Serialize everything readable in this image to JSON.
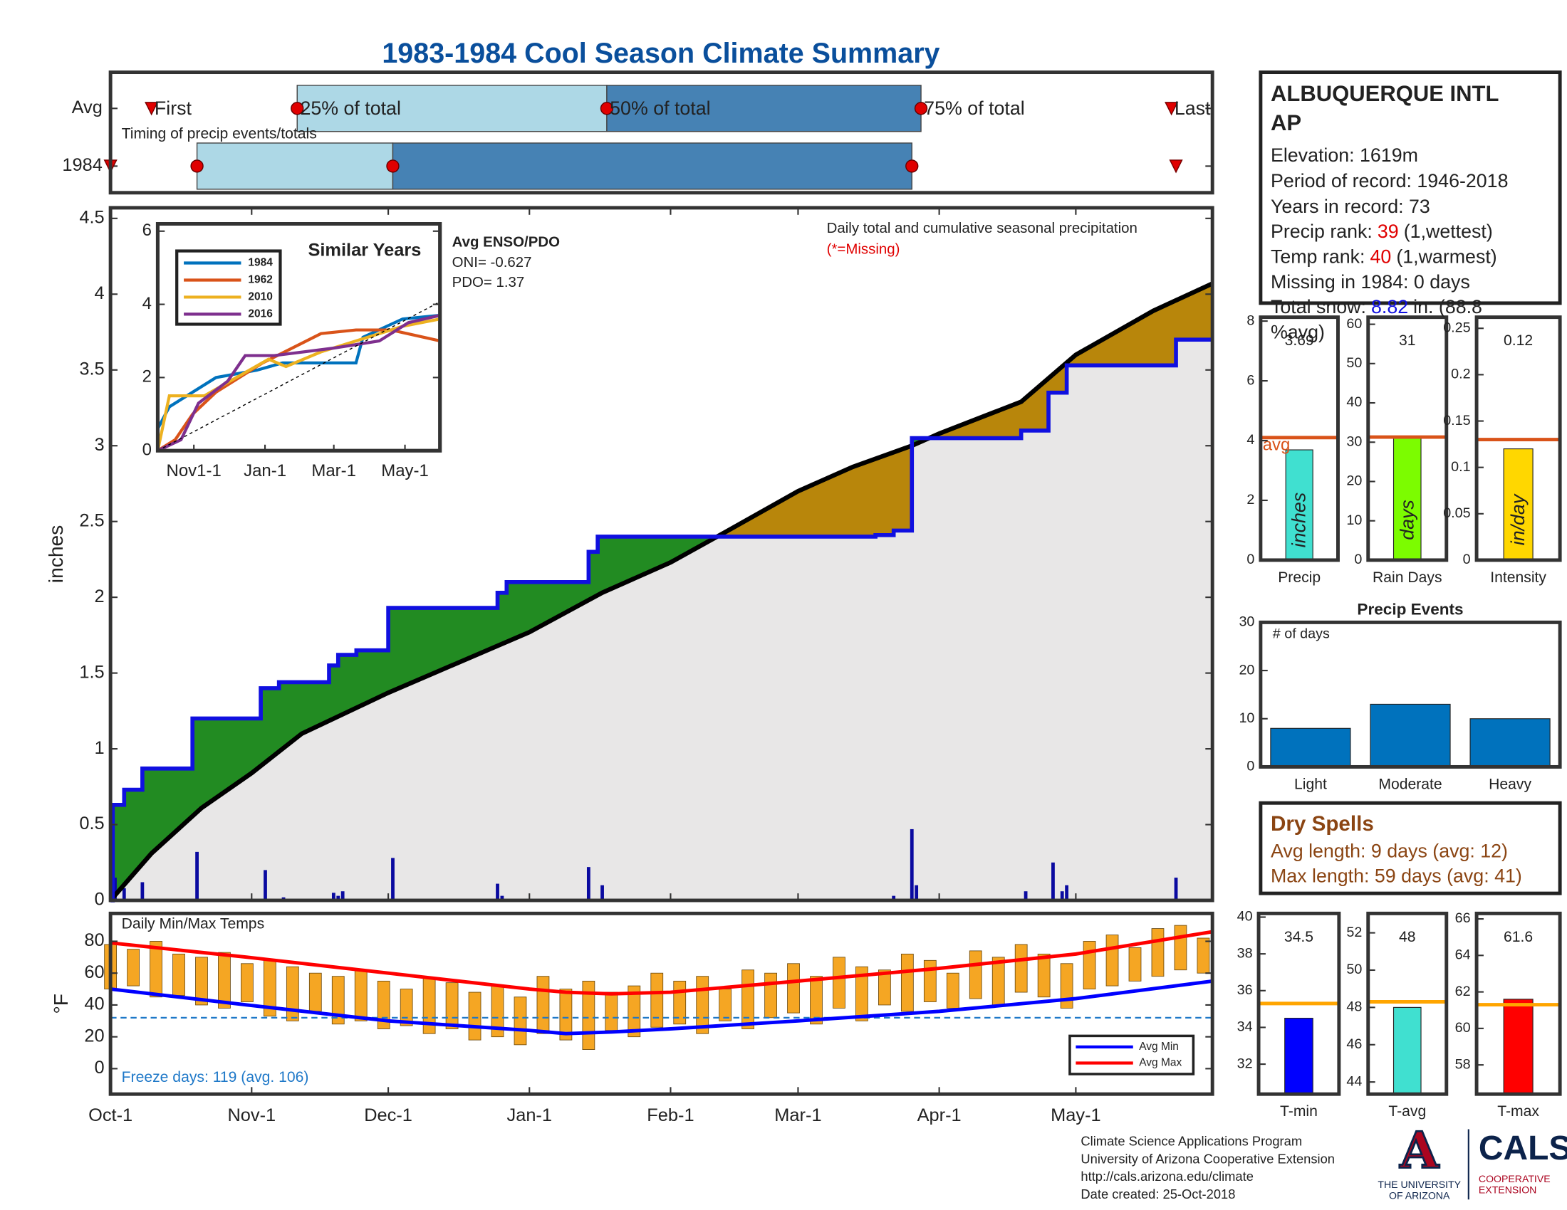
{
  "title": "1983-1984 Cool Season Climate Summary",
  "chart_data": [
    {
      "type": "timeline",
      "annotation": "Timing of precip events/totals",
      "xlim": [
        0,
        242
      ],
      "markers": [
        "First",
        "25% of total",
        "50% of total",
        "75% of total",
        "Last"
      ],
      "rows": [
        {
          "label": "Avg",
          "values": [
            9,
            41,
            109,
            178,
            233
          ]
        },
        {
          "label": "1984",
          "values": [
            0,
            19,
            62,
            176,
            234
          ]
        }
      ],
      "colors": [
        "#add8e6",
        "#4682b4"
      ],
      "marker_color": "#e00000"
    },
    {
      "type": "area",
      "annotation": "Daily total and cumulative seasonal precipitation",
      "note": "(*=Missing)",
      "enso": [
        "Avg ENSO/PDO",
        "ONI= -0.627",
        "PDO= 1.37"
      ],
      "ylabel": "inches",
      "xlim": [
        0,
        242
      ],
      "ylim": [
        0,
        4.57
      ],
      "yticks": [
        0,
        0.5,
        1,
        1.5,
        2,
        2.5,
        3,
        3.5,
        4,
        4.5
      ],
      "average": {
        "x": [
          0,
          9,
          20,
          31,
          42,
          61,
          92,
          108,
          123,
          135,
          151,
          163,
          176,
          182,
          200,
          212,
          229,
          242
        ],
        "values": [
          0,
          0.31,
          0.61,
          0.84,
          1.1,
          1.37,
          1.77,
          2.03,
          2.23,
          2.43,
          2.7,
          2.86,
          3.0,
          3.08,
          3.29,
          3.6,
          3.89,
          4.07
        ],
        "color": "#000000"
      },
      "observed": {
        "x": [
          0,
          0.5,
          3,
          7,
          18,
          33,
          37,
          48,
          50,
          54,
          61,
          85,
          87,
          105,
          107,
          168,
          172,
          176,
          200,
          206,
          210,
          234,
          242
        ],
        "values": [
          0,
          0.63,
          0.73,
          0.87,
          1.2,
          1.4,
          1.44,
          1.55,
          1.62,
          1.65,
          1.93,
          2.03,
          2.1,
          2.3,
          2.4,
          2.41,
          2.44,
          3.05,
          3.1,
          3.35,
          3.53,
          3.7,
          3.7
        ],
        "color": "#1010e0"
      },
      "daily": {
        "x": [
          1,
          3,
          7,
          19,
          34,
          38,
          49,
          50,
          51,
          62,
          85,
          86,
          105,
          108,
          172,
          176,
          177,
          201,
          207,
          209,
          210,
          234
        ],
        "values": [
          0.15,
          0.08,
          0.12,
          0.32,
          0.2,
          0.02,
          0.05,
          0.03,
          0.06,
          0.28,
          0.11,
          0.03,
          0.22,
          0.1,
          0.03,
          0.47,
          0.1,
          0.06,
          0.25,
          0.06,
          0.1,
          0.15
        ],
        "color": "#0a0aa0"
      },
      "above_color": "#228b22",
      "below_color": "#b8860b",
      "base_color": "#e8e7e7"
    },
    {
      "type": "line",
      "title": "Similar Years",
      "xlim": [
        0,
        242
      ],
      "ylim": [
        0,
        6.2
      ],
      "yticks": [
        0,
        2,
        4,
        6
      ],
      "xticks": [
        {
          "value": 31,
          "label": "Nov1-1"
        },
        {
          "value": 92,
          "label": "Jan-1"
        },
        {
          "value": 151,
          "label": "Mar-1"
        },
        {
          "value": 212,
          "label": "May-1"
        }
      ],
      "series": [
        {
          "name": "1984",
          "color": "#0072bd",
          "x": [
            0,
            10,
            30,
            50,
            85,
            107,
            170,
            176,
            210,
            242
          ],
          "values": [
            0.6,
            1.2,
            1.6,
            2.0,
            2.2,
            2.4,
            2.4,
            3.1,
            3.6,
            3.7
          ]
        },
        {
          "name": "1962",
          "color": "#d95319",
          "x": [
            0,
            15,
            30,
            50,
            90,
            140,
            170,
            200,
            242
          ],
          "values": [
            0,
            0.3,
            1.0,
            1.6,
            2.4,
            3.2,
            3.3,
            3.3,
            3.0
          ]
        },
        {
          "name": "2010",
          "color": "#edb120",
          "x": [
            0,
            10,
            40,
            95,
            110,
            140,
            170,
            210,
            242
          ],
          "values": [
            0,
            1.5,
            1.5,
            2.5,
            2.3,
            2.7,
            3.0,
            3.4,
            3.6
          ]
        },
        {
          "name": "2016",
          "color": "#7e2f8e",
          "x": [
            0,
            20,
            35,
            60,
            75,
            100,
            150,
            190,
            215,
            242
          ],
          "values": [
            0,
            0.3,
            1.3,
            1.9,
            2.6,
            2.6,
            2.8,
            3.0,
            3.5,
            3.7
          ]
        },
        {
          "color": "#000000",
          "dash": true,
          "x": [
            0,
            242
          ],
          "values": [
            0,
            4.07
          ]
        }
      ]
    },
    {
      "type": "bar",
      "categories": [
        "Precip"
      ],
      "values": [
        3.69
      ],
      "avg": 4.1,
      "avg_label": "avg",
      "unit": "inches",
      "color": "#40e0d0",
      "avg_color": "#d95319",
      "ylim": [
        0,
        8.13
      ],
      "yticks": [
        0,
        2,
        4,
        6,
        8
      ]
    },
    {
      "type": "bar",
      "categories": [
        "Rain Days"
      ],
      "values": [
        31
      ],
      "avg": 31.3,
      "unit": "days",
      "color": "#7cfc00",
      "avg_color": "#d95319",
      "ylim": [
        0,
        61.8
      ],
      "yticks": [
        0,
        10,
        20,
        30,
        40,
        50,
        60
      ]
    },
    {
      "type": "bar",
      "categories": [
        "Intensity"
      ],
      "values": [
        0.12
      ],
      "avg": 0.13,
      "unit": "in/day",
      "color": "#ffd700",
      "avg_color": "#d95319",
      "ylim": [
        0,
        0.262
      ],
      "yticks": [
        0,
        0.05,
        0.1,
        0.15,
        0.2,
        0.25
      ]
    },
    {
      "type": "bar",
      "title": "Precip Events",
      "annotation": "# of days",
      "categories": [
        "Light",
        "Moderate",
        "Heavy"
      ],
      "values": [
        8,
        13,
        10
      ],
      "color": "#0072bd",
      "ylim": [
        0,
        30
      ],
      "yticks": [
        0,
        10,
        20,
        30
      ]
    },
    {
      "type": "range",
      "annotation": "Daily Min/Max Temps",
      "note": "Freeze days: 119 (avg. 106)",
      "ylabel": "°F",
      "xlim": [
        0,
        242
      ],
      "ylim": [
        -16,
        97.5
      ],
      "yticks": [
        0,
        20,
        40,
        60,
        80
      ],
      "freeze_line": 32,
      "freeze_color": "#1e78c8",
      "bar_color": "#f5a623",
      "xticks": [
        {
          "value": 0,
          "label": "Oct-1"
        },
        {
          "value": 31,
          "label": "Nov-1"
        },
        {
          "value": 61,
          "label": "Dec-1"
        },
        {
          "value": 92,
          "label": "Jan-1"
        },
        {
          "value": 123,
          "label": "Feb-1"
        },
        {
          "value": 151,
          "label": "Mar-1"
        },
        {
          "value": 182,
          "label": "Apr-1"
        },
        {
          "value": 212,
          "label": "May-1"
        }
      ],
      "x": [
        0,
        5,
        10,
        15,
        20,
        25,
        30,
        35,
        40,
        45,
        50,
        55,
        60,
        65,
        70,
        75,
        80,
        85,
        90,
        95,
        100,
        105,
        110,
        115,
        120,
        125,
        130,
        135,
        140,
        145,
        150,
        155,
        160,
        165,
        170,
        175,
        180,
        185,
        190,
        195,
        200,
        205,
        210,
        215,
        220,
        225,
        230,
        235,
        240
      ],
      "max": [
        78,
        75,
        80,
        72,
        70,
        73,
        66,
        68,
        64,
        60,
        58,
        62,
        55,
        50,
        57,
        54,
        48,
        52,
        45,
        58,
        50,
        55,
        48,
        52,
        60,
        55,
        58,
        50,
        62,
        60,
        66,
        58,
        70,
        64,
        62,
        72,
        68,
        60,
        74,
        70,
        78,
        72,
        66,
        80,
        84,
        76,
        88,
        90,
        82
      ],
      "min": [
        50,
        52,
        45,
        46,
        40,
        38,
        42,
        33,
        30,
        36,
        28,
        30,
        25,
        27,
        22,
        25,
        18,
        20,
        15,
        22,
        18,
        12,
        24,
        20,
        26,
        28,
        22,
        30,
        25,
        32,
        35,
        28,
        38,
        30,
        40,
        36,
        42,
        38,
        44,
        40,
        48,
        45,
        38,
        50,
        52,
        55,
        58,
        62,
        60
      ],
      "series": [
        {
          "name": "Avg Min",
          "color": "#0000ff",
          "x": [
            0,
            30,
            61,
            92,
            100,
            110,
            123,
            151,
            182,
            212,
            242
          ],
          "values": [
            50,
            40,
            30,
            24,
            22,
            23,
            25,
            30,
            36,
            44,
            55
          ]
        },
        {
          "name": "Avg Max",
          "color": "#ff0000",
          "x": [
            0,
            30,
            61,
            92,
            100,
            110,
            123,
            151,
            182,
            212,
            242
          ],
          "values": [
            79,
            70,
            60,
            50,
            48,
            47,
            48,
            55,
            63,
            72,
            86
          ]
        }
      ]
    },
    {
      "type": "bar",
      "categories": [
        "T-min"
      ],
      "values": [
        34.5
      ],
      "avg": 35.3,
      "color": "#0000ff",
      "avg_color": "#ffa500",
      "ylim": [
        30.37,
        40.2
      ],
      "yticks": [
        32,
        34,
        36,
        38,
        40
      ]
    },
    {
      "type": "bar",
      "categories": [
        "T-avg"
      ],
      "values": [
        48
      ],
      "avg": 48.3,
      "color": "#40e0d0",
      "avg_color": "#ffa500",
      "ylim": [
        43.35,
        53.04
      ],
      "yticks": [
        44,
        46,
        48,
        50,
        52
      ]
    },
    {
      "type": "bar",
      "categories": [
        "T-max"
      ],
      "values": [
        61.6
      ],
      "avg": 61.3,
      "color": "#ff0000",
      "avg_color": "#ffa500",
      "ylim": [
        56.4,
        66.3
      ],
      "yticks": [
        58,
        60,
        62,
        64,
        66
      ]
    }
  ],
  "station": {
    "name_lines": [
      "ALBUQUERQUE INTL",
      "AP"
    ],
    "elevation": "Elevation: 1619m",
    "period": "Period of record: 1946-2018",
    "years": "Years in record: 73",
    "precip_rank": {
      "label": "Precip rank:",
      "value": "39",
      "rest": "(1,wettest)"
    },
    "temp_rank": {
      "label": "Temp rank:",
      "value": "40",
      "rest": "(1,warmest)"
    },
    "missing": "Missing in 1984: 0 days",
    "snow": {
      "label": "Total snow:",
      "value": "8.82",
      "rest": "in. (88.8",
      "rest2": "%avg)"
    }
  },
  "dry_spells": {
    "title": "Dry Spells",
    "avg": "Avg length: 9 days (avg: 12)",
    "max": "Max length: 59 days (avg: 41)"
  },
  "footer": {
    "lines": [
      "Climate Science Applications Program",
      "University of Arizona Cooperative Extension",
      "http://cals.arizona.edu/climate",
      " Date created: 25-Oct-2018"
    ],
    "logo": {
      "a": "A",
      "univ": [
        "THE UNIVERSITY",
        "OF ARIZONA"
      ],
      "cals": "CALS",
      "ext": [
        "COOPERATIVE",
        "EXTENSION"
      ]
    }
  }
}
